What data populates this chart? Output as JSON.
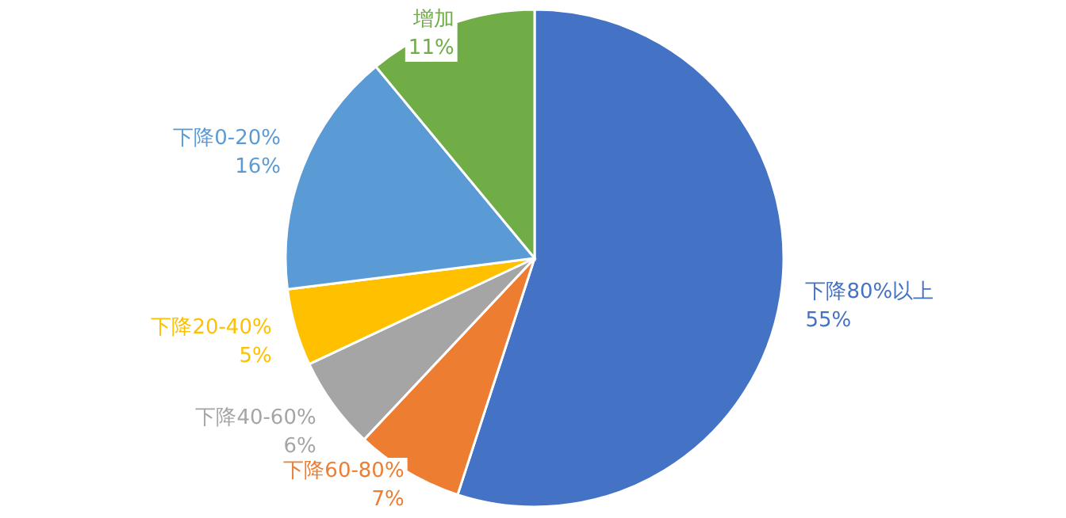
{
  "chart_data": {
    "type": "pie",
    "categories": [
      "下降80%以上",
      "下降60-80%",
      "下降40-60%",
      "下降20-40%",
      "下降0-20%",
      "增加"
    ],
    "values": [
      55,
      7,
      6,
      5,
      16,
      11
    ],
    "colors": [
      "#4472c4",
      "#ed7d31",
      "#a5a5a5",
      "#ffc000",
      "#5b9bd5",
      "#70ad47"
    ],
    "value_labels": [
      "55%",
      "7%",
      "6%",
      "5%",
      "16%",
      "11%"
    ]
  }
}
